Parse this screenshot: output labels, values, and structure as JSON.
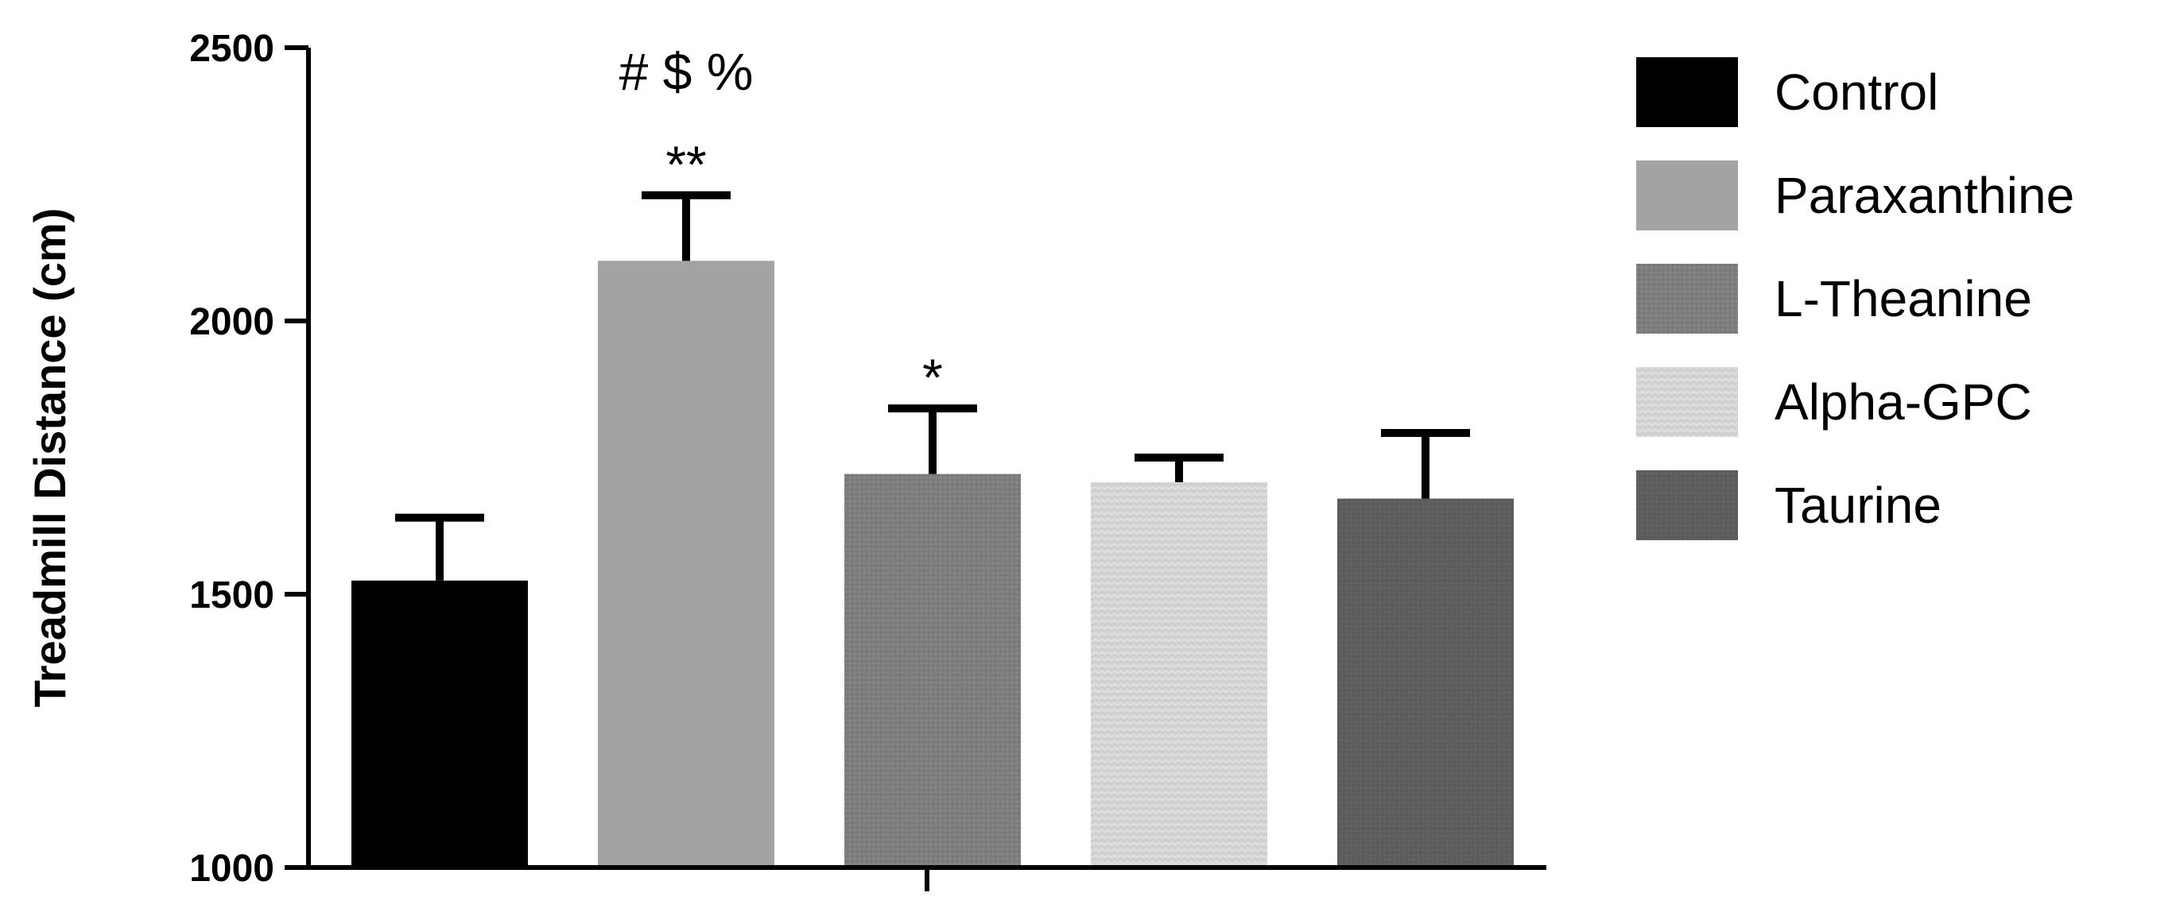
{
  "chart_data": {
    "type": "bar",
    "categories": [
      "Control",
      "Paraxanthine",
      "L-Theanine",
      "Alpha-GPC",
      "Taurine"
    ],
    "values": [
      1525,
      2110,
      1720,
      1705,
      1675
    ],
    "errors": [
      115,
      120,
      120,
      45,
      120
    ],
    "colors": [
      "#000000",
      "#a3a3a5",
      "#7e7e7e",
      "#d6d6d6",
      "#5d5d5d"
    ],
    "ylabel": "Treadmill Distance  (cm)",
    "ylim": [
      1000,
      2500
    ],
    "yticks": [
      "1000",
      "1500",
      "2000",
      "2500"
    ],
    "annotations": [
      {
        "category_index": 1,
        "text": "**",
        "row": 1
      },
      {
        "category_index": 1,
        "text": "# $ %",
        "row": 2
      },
      {
        "category_index": 2,
        "text": "*",
        "row": 1
      }
    ],
    "legend": {
      "position": "right",
      "entries": [
        "Control",
        "Paraxanthine",
        "L-Theanine",
        "Alpha-GPC",
        "Taurine"
      ]
    },
    "grid": false
  }
}
